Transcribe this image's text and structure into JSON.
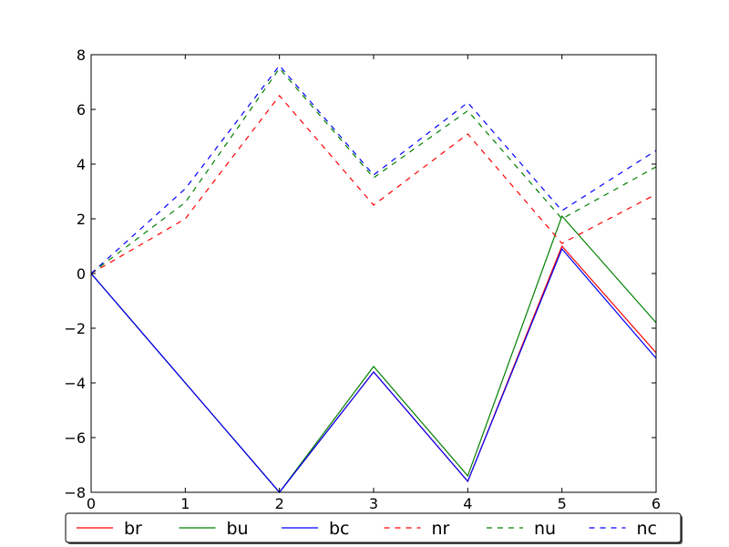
{
  "chart_data": {
    "type": "line",
    "title": "",
    "xlabel": "",
    "ylabel": "",
    "xlim": [
      0,
      6
    ],
    "ylim": [
      -8,
      8
    ],
    "x_ticks": [
      "0",
      "1",
      "2",
      "3",
      "4",
      "5",
      "6"
    ],
    "y_ticks": [
      "−8",
      "−6",
      "−4",
      "−2",
      "0",
      "2",
      "4",
      "6",
      "8"
    ],
    "grid": false,
    "legend_position": "bottom",
    "x": [
      0,
      1,
      2,
      3,
      4,
      5,
      6
    ],
    "series": [
      {
        "name": "br",
        "color": "#ff0000",
        "style": "solid",
        "values": [
          0,
          -4,
          -8,
          -3.6,
          -7.6,
          1.0,
          -2.9
        ]
      },
      {
        "name": "bu",
        "color": "#008000",
        "style": "solid",
        "values": [
          0,
          -4,
          -8,
          -3.4,
          -7.4,
          2.1,
          -1.8
        ]
      },
      {
        "name": "bc",
        "color": "#0000ff",
        "style": "solid",
        "values": [
          0,
          -4,
          -8,
          -3.6,
          -7.6,
          0.9,
          -3.1
        ]
      },
      {
        "name": "nr",
        "color": "#ff0000",
        "style": "dashed",
        "values": [
          0,
          2.0,
          6.5,
          2.5,
          5.1,
          1.1,
          2.9
        ]
      },
      {
        "name": "nu",
        "color": "#008000",
        "style": "dashed",
        "values": [
          0,
          2.6,
          7.5,
          3.5,
          5.95,
          2.0,
          3.9
        ]
      },
      {
        "name": "nc",
        "color": "#0000ff",
        "style": "dashed",
        "values": [
          0,
          3.1,
          7.6,
          3.6,
          6.25,
          2.3,
          4.5
        ]
      }
    ]
  }
}
